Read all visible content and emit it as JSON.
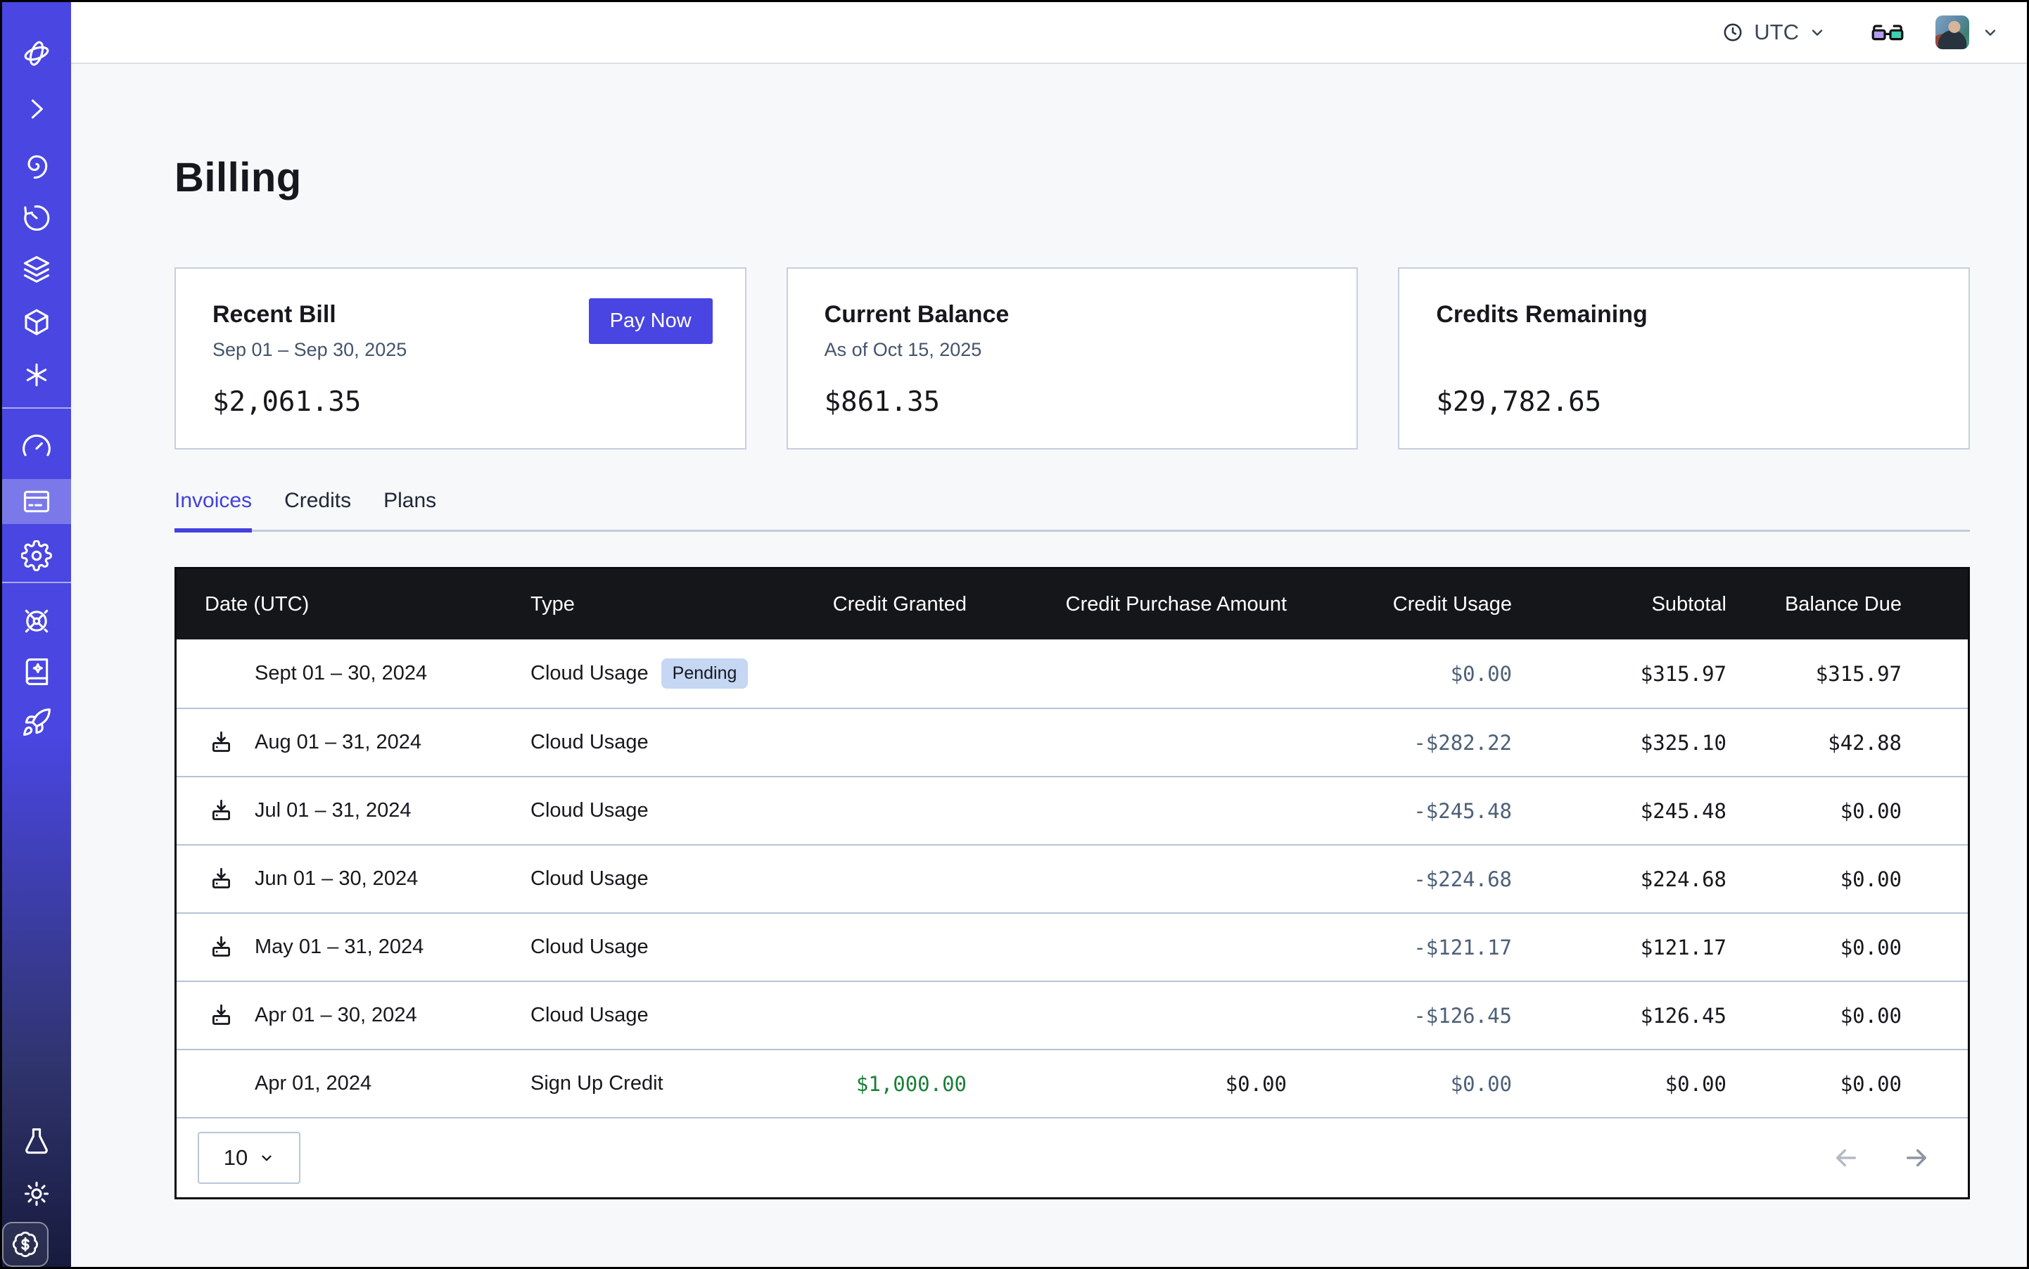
{
  "topbar": {
    "timezone": "UTC",
    "icons": [
      "clock-icon",
      "chevron-down-icon",
      "glasses-icon",
      "avatar",
      "chevron-down-icon"
    ]
  },
  "sidebar": {
    "icons_top": [
      "logo-orbit-icon",
      "chevron-right-icon",
      "spiral-icon",
      "timer-icon",
      "layers-icon",
      "cube-icon",
      "asterisk-icon"
    ],
    "icons_middle": [
      "gauge-icon",
      "billing-icon",
      "gear-icon"
    ],
    "icons_lower": [
      "wheel-icon",
      "book-sparkle-icon",
      "rocket-icon"
    ],
    "icons_bottom": [
      "flask-icon",
      "sun-icon",
      "dollar-badge-icon"
    ],
    "active_item": "billing"
  },
  "page": {
    "title": "Billing"
  },
  "cards": [
    {
      "title": "Recent Bill",
      "subtitle": "Sep 01 – Sep 30, 2025",
      "amount": "$2,061.35",
      "action": "Pay Now"
    },
    {
      "title": "Current Balance",
      "subtitle": "As of Oct 15, 2025",
      "amount": "$861.35"
    },
    {
      "title": "Credits Remaining",
      "subtitle": "",
      "amount": "$29,782.65"
    }
  ],
  "tabs": [
    {
      "label": "Invoices",
      "active": true
    },
    {
      "label": "Credits",
      "active": false
    },
    {
      "label": "Plans",
      "active": false
    }
  ],
  "table": {
    "columns": [
      "Date (UTC)",
      "Type",
      "Credit Granted",
      "Credit Purchase Amount",
      "Credit Usage",
      "Subtotal",
      "Balance Due"
    ],
    "rows": [
      {
        "date": "Sept 01 – 30, 2024",
        "download": false,
        "type": "Cloud Usage",
        "badge": "Pending",
        "credit_granted": "",
        "credit_purchase": "",
        "credit_usage": "$0.00",
        "subtotal": "$315.97",
        "balance": "$315.97"
      },
      {
        "date": "Aug 01 – 31, 2024",
        "download": true,
        "type": "Cloud Usage",
        "credit_granted": "",
        "credit_purchase": "",
        "credit_usage": "-$282.22",
        "subtotal": "$325.10",
        "balance": "$42.88"
      },
      {
        "date": "Jul 01 – 31, 2024",
        "download": true,
        "type": "Cloud Usage",
        "credit_granted": "",
        "credit_purchase": "",
        "credit_usage": "-$245.48",
        "subtotal": "$245.48",
        "balance": "$0.00"
      },
      {
        "date": "Jun 01 – 30, 2024",
        "download": true,
        "type": "Cloud Usage",
        "credit_granted": "",
        "credit_purchase": "",
        "credit_usage": "-$224.68",
        "subtotal": "$224.68",
        "balance": "$0.00"
      },
      {
        "date": "May 01 – 31, 2024",
        "download": true,
        "type": "Cloud Usage",
        "credit_granted": "",
        "credit_purchase": "",
        "credit_usage": "-$121.17",
        "subtotal": "$121.17",
        "balance": "$0.00"
      },
      {
        "date": "Apr 01 – 30, 2024",
        "download": true,
        "type": "Cloud Usage",
        "credit_granted": "",
        "credit_purchase": "",
        "credit_usage": "-$126.45",
        "subtotal": "$126.45",
        "balance": "$0.00"
      },
      {
        "date": "Apr 01, 2024",
        "download": false,
        "type": "Sign Up Credit",
        "granted_green": true,
        "credit_granted": "$1,000.00",
        "credit_purchase": "$0.00",
        "credit_usage": "$0.00",
        "subtotal": "$0.00",
        "balance": "$0.00"
      }
    ]
  },
  "pagination": {
    "page_size": "10"
  },
  "colors": {
    "accent": "#4845e2",
    "sidebar_top": "#4946e2",
    "sidebar_bottom": "#171b3d",
    "table_header_bg": "#141619",
    "row_border": "#b7c3d6",
    "usage_text": "#4d6078",
    "credit_green": "#1a7f37",
    "pending_badge_bg": "#c6d7f4",
    "page_bg": "#f7f8fa",
    "glasses_left_lens": "#b49df1",
    "glasses_right_lens": "#3fcfb2"
  }
}
